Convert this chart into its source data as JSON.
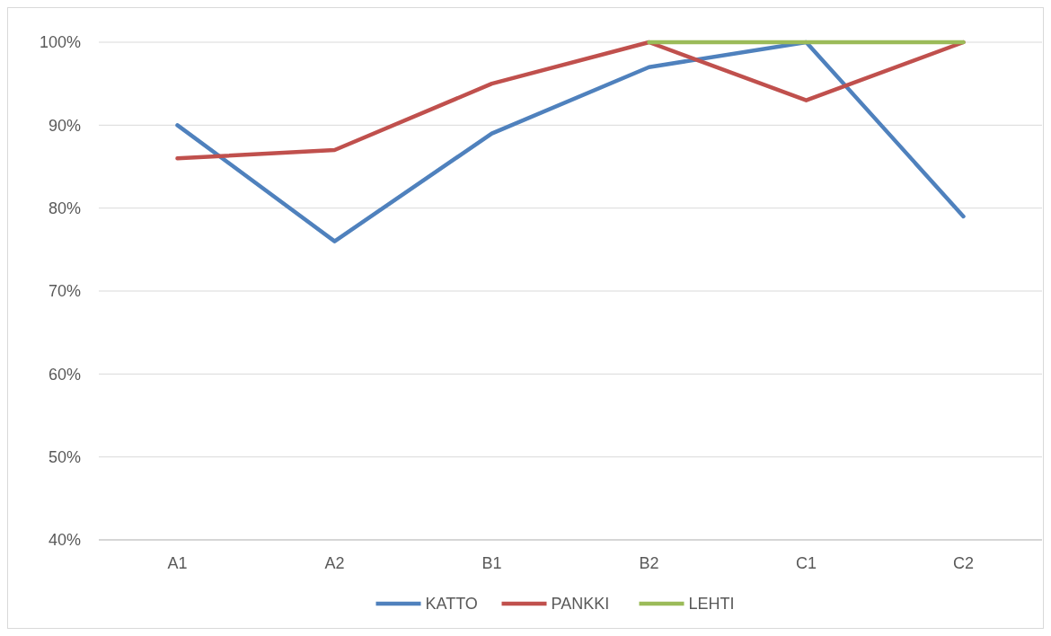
{
  "chart_data": {
    "type": "line",
    "categories": [
      "A1",
      "A2",
      "B1",
      "B2",
      "C1",
      "C2"
    ],
    "series": [
      {
        "name": "KATTO",
        "color": "#4f81bd",
        "values": [
          90,
          76,
          89,
          97,
          100,
          79
        ]
      },
      {
        "name": "PANKKI",
        "color": "#c0504d",
        "values": [
          86,
          87,
          95,
          100,
          93,
          100
        ]
      },
      {
        "name": "LEHTI",
        "color": "#9bbb59",
        "values": [
          null,
          null,
          null,
          100,
          100,
          100
        ]
      }
    ],
    "ylim": [
      40,
      100
    ],
    "yticks": [
      {
        "value": 40,
        "label": "40%"
      },
      {
        "value": 50,
        "label": "50%"
      },
      {
        "value": 60,
        "label": "60%"
      },
      {
        "value": 70,
        "label": "70%"
      },
      {
        "value": 80,
        "label": "80%"
      },
      {
        "value": 90,
        "label": "90%"
      },
      {
        "value": 100,
        "label": "100%"
      }
    ],
    "grid": "y",
    "legend": "bottom",
    "marker": "none",
    "line_style": "solid"
  }
}
